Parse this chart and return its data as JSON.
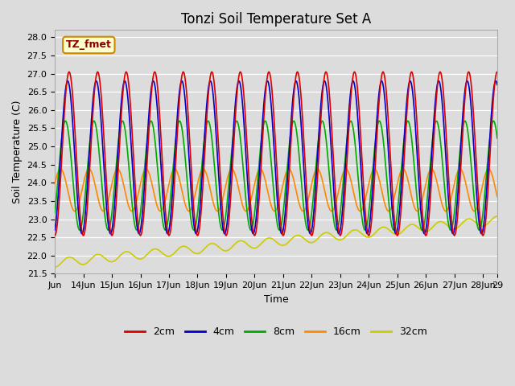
{
  "title": "Tonzi Soil Temperature Set A",
  "xlabel": "Time",
  "ylabel": "Soil Temperature (C)",
  "ylim": [
    21.5,
    28.2
  ],
  "xlim": [
    0,
    15.5
  ],
  "background_color": "#dcdcdc",
  "plot_bg_color": "#dcdcdc",
  "annotation_text": "TZ_fmet",
  "annotation_bg": "#ffffcc",
  "annotation_border": "#cc8800",
  "series": {
    "2cm": {
      "color": "#dd0000",
      "lw": 1.2
    },
    "4cm": {
      "color": "#0000cc",
      "lw": 1.2
    },
    "8cm": {
      "color": "#00aa00",
      "lw": 1.2
    },
    "16cm": {
      "color": "#ff8800",
      "lw": 1.2
    },
    "32cm": {
      "color": "#cccc00",
      "lw": 1.2
    }
  },
  "xtick_labels": [
    "Jun",
    "14Jun",
    "15Jun",
    "16Jun",
    "17Jun",
    "18Jun",
    "19Jun",
    "20Jun",
    "21Jun",
    "22Jun",
    "23Jun",
    "24Jun",
    "25Jun",
    "26Jun",
    "27Jun",
    "28Jun",
    "29"
  ],
  "xtick_positions": [
    0,
    1,
    2,
    3,
    4,
    5,
    6,
    7,
    8,
    9,
    10,
    11,
    12,
    13,
    14,
    15,
    15.5
  ],
  "ytick_values": [
    21.5,
    22.0,
    22.5,
    23.0,
    23.5,
    24.0,
    24.5,
    25.0,
    25.5,
    26.0,
    26.5,
    27.0,
    27.5,
    28.0
  ],
  "n_points": 3600,
  "days": 15.5,
  "depth_2cm": {
    "base_mean": 24.8,
    "amplitude": 2.25,
    "phase": 0.0,
    "trend": 0.0
  },
  "depth_4cm": {
    "base_mean": 24.7,
    "amplitude": 2.1,
    "phase": 0.05,
    "trend": 0.0
  },
  "depth_8cm": {
    "base_mean": 24.2,
    "amplitude": 1.5,
    "phase": 0.13,
    "trend": 0.0
  },
  "depth_16cm": {
    "base_mean": 23.8,
    "amplitude": 0.58,
    "phase": 0.3,
    "trend": 0.0
  },
  "depth_32cm": {
    "base_mean": 21.8,
    "amplitude": 0.12,
    "phase": 0.0,
    "trend": 0.075
  },
  "legend_labels": [
    "2cm",
    "4cm",
    "8cm",
    "16cm",
    "32cm"
  ],
  "legend_colors": [
    "#dd0000",
    "#0000cc",
    "#00aa00",
    "#ff8800",
    "#cccc00"
  ],
  "title_fontsize": 12,
  "axis_label_fontsize": 9,
  "tick_fontsize": 8,
  "legend_fontsize": 9
}
